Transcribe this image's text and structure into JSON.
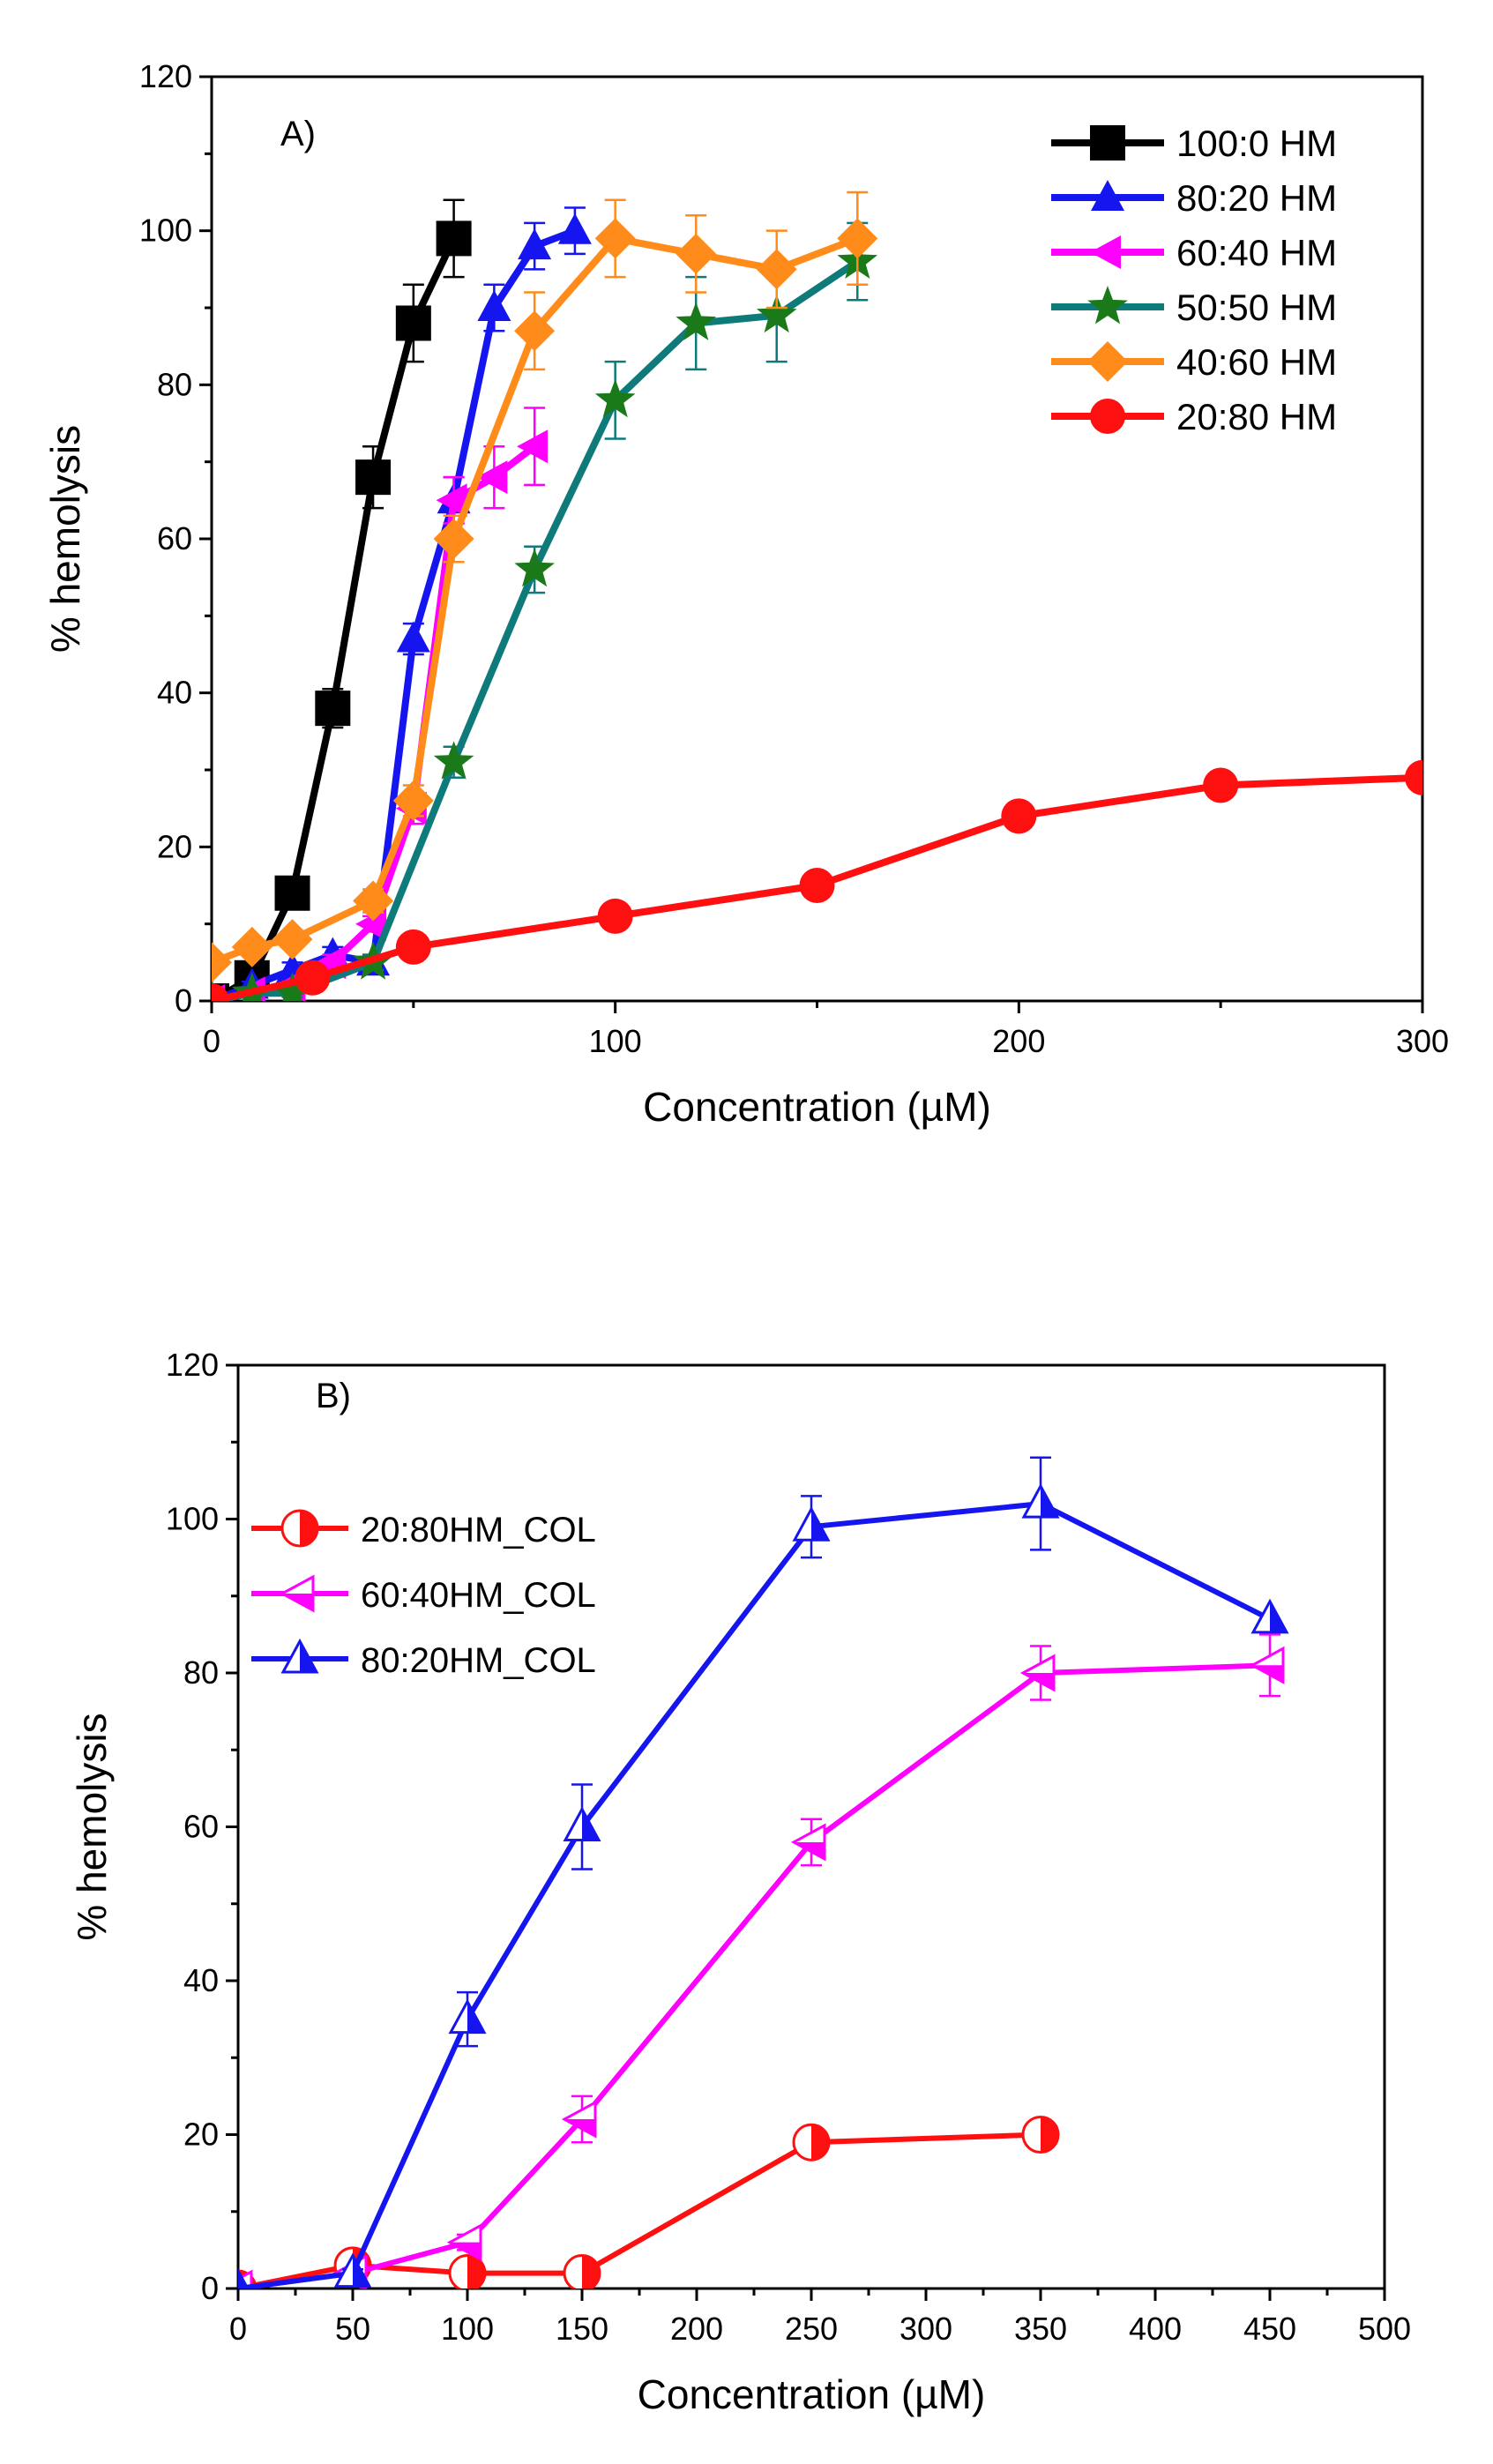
{
  "chart_data": [
    {
      "type": "line",
      "panel_label": "A)",
      "xlabel": "Concentration (µM)",
      "ylabel": "% hemolysis",
      "xlim": [
        0,
        300
      ],
      "ylim": [
        0,
        120
      ],
      "x_ticks": [
        0,
        100,
        200,
        300
      ],
      "y_ticks": [
        0,
        20,
        40,
        60,
        80,
        100,
        120
      ],
      "legend_position": "top-right",
      "series": [
        {
          "name": "100:0 HM",
          "color": "#000000",
          "marker": "square",
          "fill": "solid",
          "x": [
            0,
            10,
            20,
            30,
            40,
            50,
            60
          ],
          "y": [
            0,
            3,
            14,
            38,
            68,
            88,
            99
          ],
          "err": [
            0,
            1,
            1.5,
            2.5,
            4,
            5,
            5
          ]
        },
        {
          "name": "80:20 HM",
          "color": "#1515f0",
          "marker": "triangle-up",
          "fill": "solid",
          "x": [
            0,
            10,
            20,
            30,
            40,
            50,
            60,
            70,
            80,
            90
          ],
          "y": [
            0,
            2,
            4,
            6,
            5,
            47,
            65,
            90,
            98,
            100
          ],
          "err": [
            0,
            0.5,
            1,
            1,
            1,
            2,
            3,
            3,
            3,
            3
          ]
        },
        {
          "name": "60:40 HM",
          "color": "#ff00ff",
          "marker": "triangle-left",
          "fill": "solid",
          "x": [
            0,
            10,
            20,
            30,
            40,
            50,
            60,
            70,
            80
          ],
          "y": [
            0,
            1,
            2,
            5,
            10,
            25,
            65,
            68,
            72
          ],
          "err": [
            0,
            0.5,
            0.5,
            1,
            1,
            2,
            3,
            4,
            5
          ]
        },
        {
          "name": "50:50 HM",
          "color": "#0e7a7a",
          "marker": "star",
          "marker_color": "#1a7a1a",
          "fill": "solid",
          "x": [
            0,
            10,
            20,
            40,
            60,
            80,
            100,
            120,
            140,
            160
          ],
          "y": [
            0,
            1,
            1,
            5,
            31,
            56,
            78,
            88,
            89,
            96
          ],
          "err": [
            0,
            0.5,
            0.5,
            1,
            2,
            3,
            5,
            6,
            6,
            5
          ]
        },
        {
          "name": "40:60 HM",
          "color": "#ff8c1a",
          "marker": "diamond",
          "fill": "solid",
          "x": [
            0,
            10,
            20,
            40,
            50,
            60,
            80,
            100,
            120,
            140,
            160
          ],
          "y": [
            5,
            7,
            8,
            13,
            26,
            60,
            87,
            99,
            97,
            95,
            99
          ],
          "err": [
            0,
            1,
            1,
            1.5,
            2,
            3,
            5,
            5,
            5,
            5,
            6
          ]
        },
        {
          "name": "20:80 HM",
          "color": "#ff1010",
          "marker": "circle",
          "fill": "solid",
          "x": [
            0,
            25,
            50,
            100,
            150,
            200,
            250,
            300
          ],
          "y": [
            0,
            3,
            7,
            11,
            15,
            24,
            28,
            29
          ],
          "err": [
            0,
            0.5,
            0.5,
            0.5,
            0.5,
            0.5,
            0.5,
            0.5
          ]
        }
      ]
    },
    {
      "type": "line",
      "panel_label": "B)",
      "xlabel": "Concentration (µM)",
      "ylabel": "% hemolysis",
      "xlim": [
        0,
        500
      ],
      "ylim": [
        0,
        120
      ],
      "x_ticks": [
        0,
        50,
        100,
        150,
        200,
        250,
        300,
        350,
        400,
        450,
        500
      ],
      "y_ticks": [
        0,
        20,
        40,
        60,
        80,
        100,
        120
      ],
      "legend_position": "top-left",
      "series": [
        {
          "name": "20:80HM_COL",
          "color": "#ff1010",
          "marker": "circle",
          "fill": "half-right",
          "x": [
            0,
            50,
            100,
            150,
            250,
            350
          ],
          "y": [
            0,
            3,
            2,
            2,
            19,
            20
          ],
          "err": [
            0,
            0.5,
            0.5,
            0.5,
            1,
            0
          ]
        },
        {
          "name": "60:40HM_COL",
          "color": "#ff00ff",
          "marker": "triangle-left",
          "fill": "half-bottom",
          "x": [
            0,
            50,
            100,
            150,
            250,
            350,
            450
          ],
          "y": [
            0,
            2,
            6,
            22,
            58,
            80,
            81
          ],
          "err": [
            0,
            0.5,
            1,
            3,
            3,
            3.5,
            4
          ]
        },
        {
          "name": "80:20HM_COL",
          "color": "#1515f0",
          "marker": "triangle-up",
          "fill": "half-right",
          "x": [
            0,
            50,
            100,
            150,
            250,
            350,
            450
          ],
          "y": [
            0,
            2,
            35,
            60,
            99,
            102,
            87
          ],
          "err": [
            0,
            0.5,
            3.5,
            5.5,
            4,
            6,
            0
          ]
        }
      ]
    }
  ]
}
